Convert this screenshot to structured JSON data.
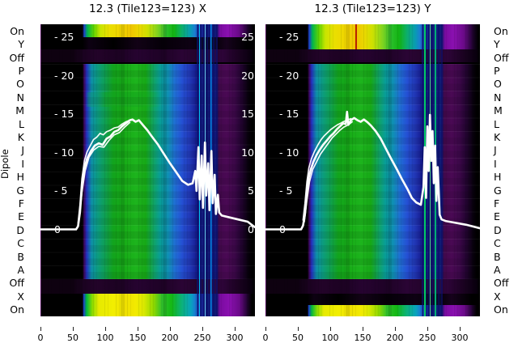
{
  "figure": {
    "ylabel": "Dipole"
  },
  "colors": {
    "page_background": "#ffffff",
    "plot_background": "#000000",
    "curve": "#ffffff",
    "heat_purple": "#6a0a88",
    "heat_blue": "#2430c0",
    "heat_green": "#1db41d",
    "heat_yellow": "#f0e000",
    "red_rfi_line": "#b30f00",
    "text": "#000000"
  },
  "chart_data": [
    {
      "type": "heatmap",
      "title": "12.3 (Tile123=123) X",
      "ylabel": "Dipole",
      "x_range": [
        0,
        330
      ],
      "x_ticks": [
        0,
        50,
        100,
        150,
        200,
        250,
        300
      ],
      "rows": [
        "On",
        "Y",
        "Off",
        "P",
        "O",
        "N",
        "M",
        "L",
        "K",
        "J",
        "I",
        "H",
        "G",
        "F",
        "E",
        "D",
        "C",
        "B",
        "A",
        "Off",
        "X",
        "On"
      ],
      "value_ticks": [
        25,
        20,
        15,
        10,
        5,
        0
      ],
      "inner_tick_labels": [
        "- 25",
        "- 20",
        "- 15",
        "- 10",
        "- 5",
        "0"
      ],
      "right_tick_labels": [
        "25",
        "20",
        "15",
        "10",
        "5",
        "0"
      ],
      "bright_rows": [
        "On (top)",
        "X",
        "On (bottom)"
      ],
      "dark_rows": [
        "Y",
        "Off (top)",
        "Off (bottom)"
      ],
      "overlay_curve_main": [
        [
          0,
          0
        ],
        [
          55,
          0
        ],
        [
          58,
          0.4
        ],
        [
          61,
          2.2
        ],
        [
          64,
          5.5
        ],
        [
          68,
          8.0
        ],
        [
          72,
          9.2
        ],
        [
          78,
          10.2
        ],
        [
          84,
          10.9
        ],
        [
          90,
          11.2
        ],
        [
          96,
          11.0
        ],
        [
          102,
          11.8
        ],
        [
          108,
          12.1
        ],
        [
          114,
          12.7
        ],
        [
          120,
          12.9
        ],
        [
          126,
          13.4
        ],
        [
          132,
          13.8
        ],
        [
          138,
          14.2
        ],
        [
          142,
          14.3
        ],
        [
          147,
          14.0
        ],
        [
          152,
          14.2
        ],
        [
          158,
          13.6
        ],
        [
          165,
          12.9
        ],
        [
          172,
          12.1
        ],
        [
          181,
          11.1
        ],
        [
          190,
          9.9
        ],
        [
          200,
          8.6
        ],
        [
          210,
          7.4
        ],
        [
          219,
          6.3
        ],
        [
          228,
          5.8
        ],
        [
          235,
          6.0
        ],
        [
          239,
          7.6
        ],
        [
          241,
          5.0
        ],
        [
          244,
          10.7
        ],
        [
          246,
          3.9
        ],
        [
          249,
          9.6
        ],
        [
          251,
          2.8
        ],
        [
          254,
          11.3
        ],
        [
          256,
          4.4
        ],
        [
          259,
          8.6
        ],
        [
          261,
          2.5
        ],
        [
          264,
          10.2
        ],
        [
          266,
          3.4
        ],
        [
          269,
          7.1
        ],
        [
          271,
          2.0
        ],
        [
          274,
          4.5
        ],
        [
          276,
          2.2
        ],
        [
          280,
          1.8
        ],
        [
          290,
          1.6
        ],
        [
          305,
          1.3
        ],
        [
          320,
          1.0
        ],
        [
          331,
          0.3
        ]
      ],
      "overlay_curve_upper": [
        [
          58,
          0.8
        ],
        [
          61,
          3.2
        ],
        [
          64,
          6.6
        ],
        [
          68,
          9.0
        ],
        [
          72,
          10.1
        ],
        [
          77,
          10.9
        ],
        [
          82,
          11.7
        ],
        [
          87,
          12.0
        ],
        [
          92,
          12.5
        ],
        [
          97,
          12.3
        ],
        [
          102,
          12.7
        ],
        [
          108,
          12.9
        ],
        [
          114,
          13.2
        ],
        [
          120,
          13.3
        ],
        [
          126,
          13.7
        ],
        [
          132,
          14.0
        ],
        [
          138,
          14.2
        ]
      ],
      "overlay_curve_lower": [
        [
          60,
          1.5
        ],
        [
          64,
          4.8
        ],
        [
          69,
          7.6
        ],
        [
          75,
          9.4
        ],
        [
          82,
          10.3
        ],
        [
          90,
          10.8
        ],
        [
          98,
          10.7
        ],
        [
          106,
          11.6
        ],
        [
          114,
          12.3
        ],
        [
          122,
          12.6
        ],
        [
          130,
          13.3
        ],
        [
          138,
          13.9
        ]
      ]
    },
    {
      "type": "heatmap",
      "title": "12.3 (Tile123=123) Y",
      "ylabel": "Dipole",
      "x_range": [
        0,
        330
      ],
      "x_ticks": [
        0,
        50,
        100,
        150,
        200,
        250,
        300
      ],
      "rows": [
        "On",
        "Y",
        "Off",
        "P",
        "O",
        "N",
        "M",
        "L",
        "K",
        "J",
        "I",
        "H",
        "G",
        "F",
        "E",
        "D",
        "C",
        "B",
        "A",
        "Off",
        "X",
        "On"
      ],
      "value_ticks": [
        25,
        20,
        15,
        10,
        5,
        0
      ],
      "inner_tick_labels": [
        "- 25",
        "- 20",
        "- 15",
        "- 10",
        "- 5",
        "0"
      ],
      "bright_rows": [
        "On (top)",
        "Y",
        "On (bottom)"
      ],
      "dark_rows": [
        "Off (top)",
        "Off (bottom)",
        "X"
      ],
      "overlay_curve_main": [
        [
          0,
          0
        ],
        [
          55,
          0
        ],
        [
          58,
          0.5
        ],
        [
          61,
          2.0
        ],
        [
          64,
          4.8
        ],
        [
          67,
          6.8
        ],
        [
          70,
          7.8
        ],
        [
          74,
          8.8
        ],
        [
          79,
          9.7
        ],
        [
          84,
          10.4
        ],
        [
          89,
          11.0
        ],
        [
          94,
          11.5
        ],
        [
          100,
          12.1
        ],
        [
          105,
          12.5
        ],
        [
          110,
          13.0
        ],
        [
          115,
          13.4
        ],
        [
          120,
          13.8
        ],
        [
          124,
          13.7
        ],
        [
          126,
          15.3
        ],
        [
          128,
          13.6
        ],
        [
          132,
          14.2
        ],
        [
          137,
          14.5
        ],
        [
          142,
          14.2
        ],
        [
          147,
          14.0
        ],
        [
          152,
          14.3
        ],
        [
          158,
          13.9
        ],
        [
          163,
          13.5
        ],
        [
          170,
          12.8
        ],
        [
          178,
          11.8
        ],
        [
          186,
          10.5
        ],
        [
          194,
          9.2
        ],
        [
          203,
          7.8
        ],
        [
          211,
          6.5
        ],
        [
          219,
          5.3
        ],
        [
          226,
          4.1
        ],
        [
          233,
          3.5
        ],
        [
          240,
          3.2
        ],
        [
          244,
          5.5
        ],
        [
          246,
          10.7
        ],
        [
          248,
          4.1
        ],
        [
          250,
          13.4
        ],
        [
          252,
          7.6
        ],
        [
          254,
          14.9
        ],
        [
          256,
          8.9
        ],
        [
          258,
          12.8
        ],
        [
          260,
          6.0
        ],
        [
          262,
          10.9
        ],
        [
          264,
          3.7
        ],
        [
          266,
          8.1
        ],
        [
          269,
          1.9
        ],
        [
          272,
          1.3
        ],
        [
          278,
          1.1
        ],
        [
          290,
          0.9
        ],
        [
          310,
          0.6
        ],
        [
          331,
          0.15
        ]
      ],
      "overlay_curve_upper": [
        [
          58,
          1.2
        ],
        [
          61,
          3.4
        ],
        [
          64,
          6.2
        ],
        [
          67,
          8.0
        ],
        [
          71,
          9.2
        ],
        [
          76,
          10.2
        ],
        [
          81,
          11.0
        ],
        [
          86,
          11.7
        ],
        [
          91,
          12.2
        ],
        [
          96,
          12.6
        ],
        [
          101,
          13.0
        ],
        [
          106,
          13.3
        ],
        [
          111,
          13.6
        ],
        [
          116,
          13.8
        ],
        [
          120,
          14.0
        ],
        [
          126,
          14.2
        ],
        [
          132,
          14.4
        ]
      ],
      "overlay_curve_lower": [
        [
          60,
          1.0
        ],
        [
          64,
          3.8
        ],
        [
          68,
          6.2
        ],
        [
          73,
          7.8
        ],
        [
          79,
          8.8
        ],
        [
          85,
          9.8
        ],
        [
          91,
          10.5
        ],
        [
          97,
          11.2
        ],
        [
          103,
          11.9
        ],
        [
          109,
          12.4
        ],
        [
          115,
          12.9
        ],
        [
          121,
          13.3
        ],
        [
          128,
          13.6
        ],
        [
          134,
          14.0
        ]
      ]
    }
  ]
}
